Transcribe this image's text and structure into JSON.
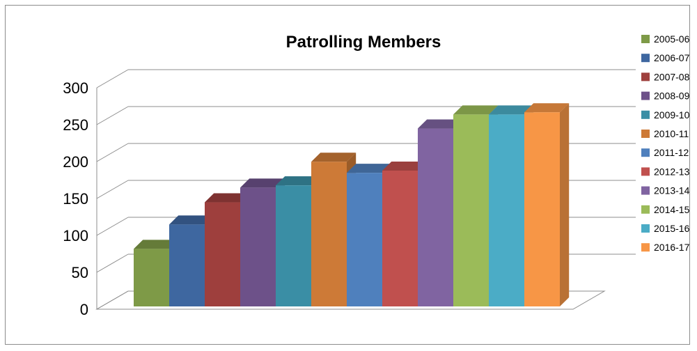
{
  "chart_data": {
    "type": "bar",
    "title": "Patrolling Members",
    "xlabel": "",
    "ylabel": "",
    "ylim": [
      0,
      300
    ],
    "yticks": [
      0,
      50,
      100,
      150,
      200,
      250,
      300
    ],
    "grid": true,
    "legend_position": "right",
    "style": "3d-column",
    "series": [
      {
        "name": "2005-06",
        "value": 78,
        "color": "#7e9a47"
      },
      {
        "name": "2006-07",
        "value": 111,
        "color": "#3e67a0"
      },
      {
        "name": "2007-08",
        "value": 141,
        "color": "#9e3f3d"
      },
      {
        "name": "2008-09",
        "value": 161,
        "color": "#6d5189"
      },
      {
        "name": "2009-10",
        "value": 164,
        "color": "#3a8ea5"
      },
      {
        "name": "2010-11",
        "value": 196,
        "color": "#cd7a37"
      },
      {
        "name": "2011-12",
        "value": 181,
        "color": "#4f80bd"
      },
      {
        "name": "2012-13",
        "value": 184,
        "color": "#c0504e"
      },
      {
        "name": "2013-14",
        "value": 241,
        "color": "#8064a1"
      },
      {
        "name": "2014-15",
        "value": 260,
        "color": "#9bbb59"
      },
      {
        "name": "2015-16",
        "value": 260,
        "color": "#4bacc6"
      },
      {
        "name": "2016-17",
        "value": 263,
        "color": "#f79646"
      }
    ]
  }
}
